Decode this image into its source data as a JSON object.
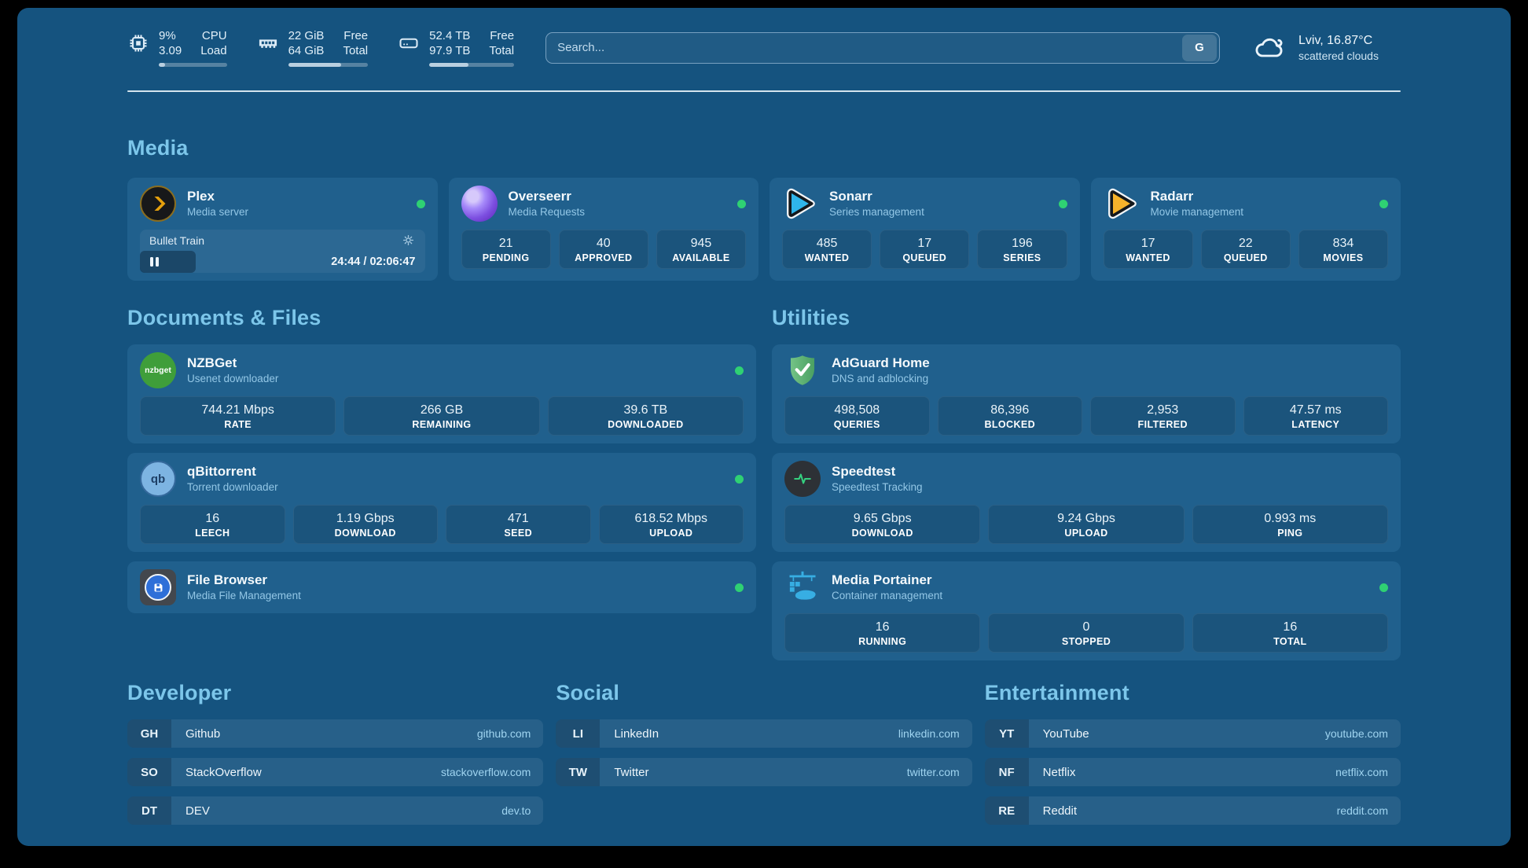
{
  "colors": {
    "frame": "#000000",
    "page_bg": "#15537f",
    "card_bg": "#20608d",
    "section_header": "#7cc6ea",
    "status_online": "#2fd173",
    "subtitle": "#93c7e6",
    "url": "#9fd4f0",
    "divider": "#e9f4fa",
    "plex_orange": "#e5a00d",
    "sonarr_cyan": "#2fb5ea",
    "radarr_orange": "#f7b32b",
    "adguard_green": "#5cb870",
    "portainer_blue": "#37aee3"
  },
  "topbar": {
    "metrics": [
      {
        "icon": "cpu-icon",
        "values": [
          "9%",
          "3.09"
        ],
        "labels": [
          "CPU",
          "Load"
        ],
        "bar_percent": 9
      },
      {
        "icon": "ram-icon",
        "values": [
          "22 GiB",
          "64 GiB"
        ],
        "labels": [
          "Free",
          "Total"
        ],
        "bar_percent": 66
      },
      {
        "icon": "disk-icon",
        "values": [
          "52.4 TB",
          "97.9 TB"
        ],
        "labels": [
          "Free",
          "Total"
        ],
        "bar_percent": 46
      }
    ],
    "search": {
      "placeholder": "Search...",
      "engine": "G"
    },
    "weather": {
      "icon": "cloud-icon",
      "line1": "Lviv, 16.87°C",
      "line2": "scattered clouds"
    }
  },
  "sections": {
    "media": {
      "title": "Media",
      "apps": {
        "plex": {
          "name": "Plex",
          "subtitle": "Media server",
          "status": "online",
          "now_playing": {
            "title": "Bullet Train",
            "time": "24:44 / 02:06:47",
            "progress_percent": 19.5
          }
        },
        "overseerr": {
          "name": "Overseerr",
          "subtitle": "Media Requests",
          "status": "online",
          "stats": [
            {
              "value": "21",
              "label": "PENDING"
            },
            {
              "value": "40",
              "label": "APPROVED"
            },
            {
              "value": "945",
              "label": "AVAILABLE"
            }
          ]
        },
        "sonarr": {
          "name": "Sonarr",
          "subtitle": "Series management",
          "status": "online",
          "stats": [
            {
              "value": "485",
              "label": "WANTED"
            },
            {
              "value": "17",
              "label": "QUEUED"
            },
            {
              "value": "196",
              "label": "SERIES"
            }
          ]
        },
        "radarr": {
          "name": "Radarr",
          "subtitle": "Movie management",
          "status": "online",
          "stats": [
            {
              "value": "17",
              "label": "WANTED"
            },
            {
              "value": "22",
              "label": "QUEUED"
            },
            {
              "value": "834",
              "label": "MOVIES"
            }
          ]
        }
      }
    },
    "documents": {
      "title": "Documents & Files",
      "apps": {
        "nzbget": {
          "name": "NZBGet",
          "subtitle": "Usenet downloader",
          "status": "online",
          "icon_text": "nzbget",
          "stats": [
            {
              "value": "744.21 Mbps",
              "label": "RATE"
            },
            {
              "value": "266 GB",
              "label": "REMAINING"
            },
            {
              "value": "39.6 TB",
              "label": "DOWNLOADED"
            }
          ]
        },
        "qbittorrent": {
          "name": "qBittorrent",
          "subtitle": "Torrent downloader",
          "status": "online",
          "icon_text": "qb",
          "stats": [
            {
              "value": "16",
              "label": "LEECH"
            },
            {
              "value": "1.19 Gbps",
              "label": "DOWNLOAD"
            },
            {
              "value": "471",
              "label": "SEED"
            },
            {
              "value": "618.52 Mbps",
              "label": "UPLOAD"
            }
          ]
        },
        "filebrowser": {
          "name": "File Browser",
          "subtitle": "Media File Management",
          "status": "online"
        }
      }
    },
    "utilities": {
      "title": "Utilities",
      "apps": {
        "adguard": {
          "name": "AdGuard Home",
          "subtitle": "DNS and adblocking",
          "stats": [
            {
              "value": "498,508",
              "label": "QUERIES"
            },
            {
              "value": "86,396",
              "label": "BLOCKED"
            },
            {
              "value": "2,953",
              "label": "FILTERED"
            },
            {
              "value": "47.57 ms",
              "label": "LATENCY"
            }
          ]
        },
        "speedtest": {
          "name": "Speedtest",
          "subtitle": "Speedtest Tracking",
          "stats": [
            {
              "value": "9.65 Gbps",
              "label": "DOWNLOAD"
            },
            {
              "value": "9.24 Gbps",
              "label": "UPLOAD"
            },
            {
              "value": "0.993 ms",
              "label": "PING"
            }
          ]
        },
        "portainer": {
          "name": "Media Portainer",
          "subtitle": "Container management",
          "status": "online",
          "stats": [
            {
              "value": "16",
              "label": "RUNNING"
            },
            {
              "value": "0",
              "label": "STOPPED"
            },
            {
              "value": "16",
              "label": "TOTAL"
            }
          ]
        }
      }
    },
    "bookmarks": [
      {
        "title": "Developer",
        "items": [
          {
            "abbr": "GH",
            "name": "Github",
            "url": "github.com"
          },
          {
            "abbr": "SO",
            "name": "StackOverflow",
            "url": "stackoverflow.com"
          },
          {
            "abbr": "DT",
            "name": "DEV",
            "url": "dev.to"
          }
        ]
      },
      {
        "title": "Social",
        "items": [
          {
            "abbr": "LI",
            "name": "LinkedIn",
            "url": "linkedin.com"
          },
          {
            "abbr": "TW",
            "name": "Twitter",
            "url": "twitter.com"
          }
        ]
      },
      {
        "title": "Entertainment",
        "items": [
          {
            "abbr": "YT",
            "name": "YouTube",
            "url": "youtube.com"
          },
          {
            "abbr": "NF",
            "name": "Netflix",
            "url": "netflix.com"
          },
          {
            "abbr": "RE",
            "name": "Reddit",
            "url": "reddit.com"
          }
        ]
      }
    ]
  }
}
